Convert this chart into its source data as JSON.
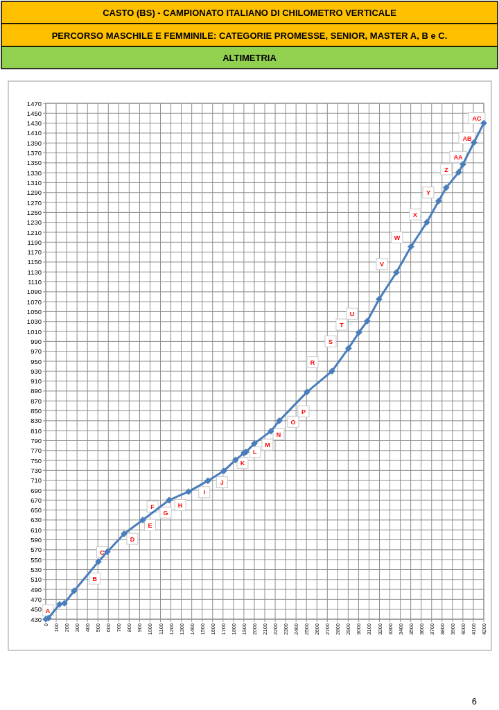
{
  "chart_data": {
    "type": "line",
    "title": "CASTO (BS) - CAMPIONATO ITALIANO DI CHILOMETRO VERTICALE",
    "subtitle": "PERCORSO MASCHILE E FEMMINILE: CATEGORIE PROMESSE, SENIOR, MASTER A, B e C.",
    "x": [
      0,
      25,
      133,
      179,
      272,
      505,
      591,
      751,
      930,
      1183,
      1369,
      1555,
      1708,
      1820,
      1900,
      1920,
      2000,
      2159,
      2239,
      2505,
      2744,
      2903,
      3003,
      3083,
      3196,
      3362,
      3502,
      3654,
      3767,
      3840,
      3960,
      4000,
      4106,
      4200
    ],
    "series": [
      {
        "color": "#4a7ebb",
        "values": [
          430,
          432,
          460,
          462,
          487,
          546,
          566,
          602,
          630,
          670,
          687,
          709,
          729,
          751,
          765,
          767,
          784,
          809,
          830,
          888,
          930,
          976,
          1008,
          1031,
          1075,
          1129,
          1181,
          1230,
          1273,
          1300,
          1331,
          1347,
          1391,
          1430
        ]
      }
    ],
    "xlim": [
      0,
      4200
    ],
    "ylim": [
      430,
      1470
    ],
    "xticks": [
      0,
      100,
      200,
      300,
      400,
      500,
      600,
      700,
      800,
      900,
      1000,
      1100,
      1200,
      1300,
      1400,
      1500,
      1600,
      1700,
      1800,
      1900,
      2000,
      2100,
      2200,
      2300,
      2400,
      2500,
      2600,
      2700,
      2800,
      2900,
      3000,
      3100,
      3200,
      3300,
      3400,
      3500,
      3600,
      3700,
      3800,
      3900,
      4000,
      4100,
      4200
    ],
    "yticks": [
      430,
      450,
      470,
      490,
      510,
      530,
      550,
      570,
      590,
      610,
      630,
      650,
      670,
      690,
      710,
      730,
      750,
      770,
      790,
      810,
      830,
      850,
      870,
      890,
      910,
      930,
      950,
      970,
      990,
      1010,
      1030,
      1050,
      1070,
      1090,
      1110,
      1130,
      1150,
      1170,
      1190,
      1210,
      1230,
      1250,
      1270,
      1290,
      1310,
      1330,
      1350,
      1370,
      1390,
      1410,
      1430,
      1450,
      1470
    ],
    "grid": true,
    "marker": "diamond",
    "line_style": "solid",
    "annotations": [
      "ALTIMETRIA",
      "6",
      {
        "text": "A",
        "x": 20,
        "y": 448
      },
      {
        "text": "B",
        "x": 470,
        "y": 512
      },
      {
        "text": "C",
        "x": 541,
        "y": 565
      },
      {
        "text": "D",
        "x": 830,
        "y": 592
      },
      {
        "text": "E",
        "x": 1000,
        "y": 620
      },
      {
        "text": "F",
        "x": 1024,
        "y": 657
      },
      {
        "text": "G",
        "x": 1150,
        "y": 645
      },
      {
        "text": "H",
        "x": 1290,
        "y": 660
      },
      {
        "text": "I",
        "x": 1520,
        "y": 686
      },
      {
        "text": "J",
        "x": 1690,
        "y": 706
      },
      {
        "text": "K",
        "x": 1887,
        "y": 745
      },
      {
        "text": "L",
        "x": 2006,
        "y": 767
      },
      {
        "text": "M",
        "x": 2126,
        "y": 782
      },
      {
        "text": "N",
        "x": 2233,
        "y": 803
      },
      {
        "text": "O",
        "x": 2372,
        "y": 828
      },
      {
        "text": "P",
        "x": 2472,
        "y": 849
      },
      {
        "text": "R",
        "x": 2558,
        "y": 948
      },
      {
        "text": "S",
        "x": 2731,
        "y": 990
      },
      {
        "text": "T",
        "x": 2837,
        "y": 1024
      },
      {
        "text": "U",
        "x": 2937,
        "y": 1046
      },
      {
        "text": "V",
        "x": 3223,
        "y": 1146
      },
      {
        "text": "W",
        "x": 3369,
        "y": 1200
      },
      {
        "text": "X",
        "x": 3542,
        "y": 1246
      },
      {
        "text": "Y",
        "x": 3668,
        "y": 1290
      },
      {
        "text": "Z",
        "x": 3841,
        "y": 1337
      },
      {
        "text": "AA",
        "x": 3954,
        "y": 1362
      },
      {
        "text": "AB",
        "x": 4040,
        "y": 1400
      },
      {
        "text": "AC",
        "x": 4133,
        "y": 1440
      }
    ]
  }
}
